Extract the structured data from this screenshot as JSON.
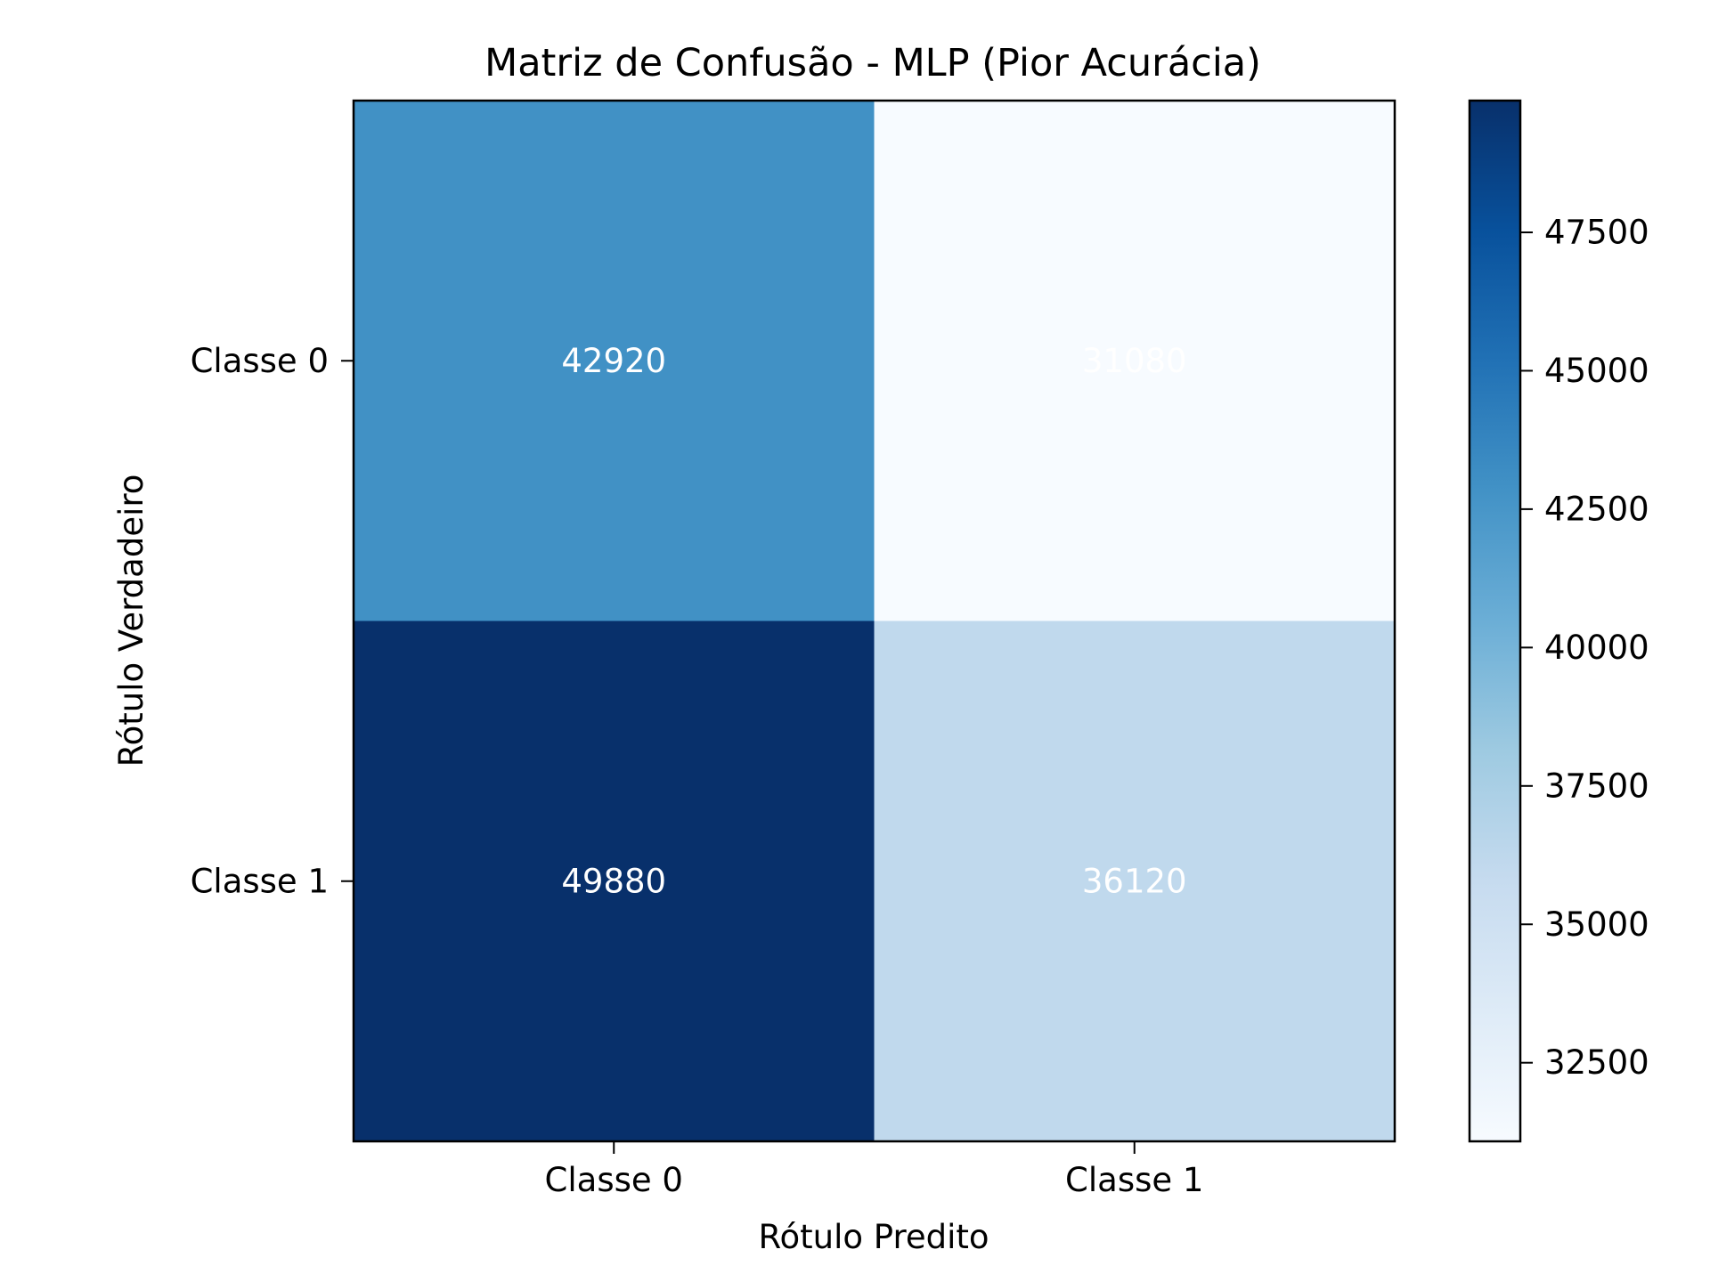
{
  "chart_data": {
    "type": "heatmap",
    "title": "Matriz de Confusão - MLP (Pior Acurácia)",
    "xlabel": "Rótulo Predito",
    "ylabel": "Rótulo Verdadeiro",
    "x_categories": [
      "Classe 0",
      "Classe 1"
    ],
    "y_categories": [
      "Classe 0",
      "Classe 1"
    ],
    "values": [
      [
        42920,
        31080
      ],
      [
        49880,
        36120
      ]
    ],
    "value_labels": [
      [
        "42920",
        "31080"
      ],
      [
        "49880",
        "36120"
      ]
    ],
    "colormap": "Blues",
    "color_range": [
      31080,
      49880
    ],
    "colorbar_ticks": [
      32500,
      35000,
      37500,
      40000,
      42500,
      45000,
      47500
    ],
    "colorbar_tick_labels": [
      "32500",
      "35000",
      "37500",
      "40000",
      "42500",
      "45000",
      "47500"
    ],
    "annotation_color": "#ffffff",
    "grid": false
  }
}
